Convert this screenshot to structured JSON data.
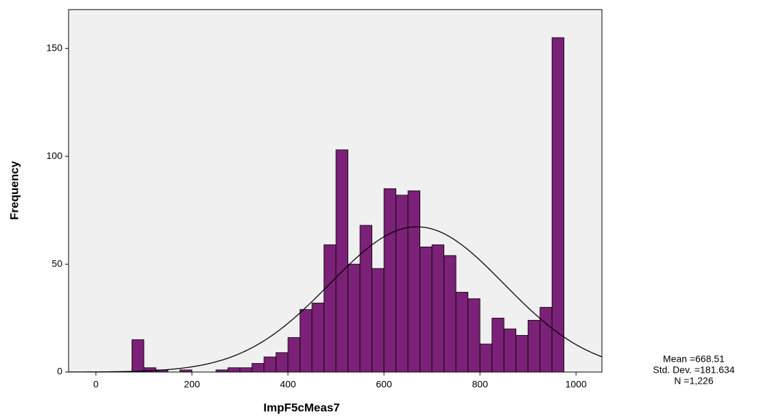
{
  "chart_data": {
    "type": "histogram",
    "x_label": "ImpF5cMeas7",
    "y_label": "Frequency",
    "bins": [
      75,
      100,
      125,
      150,
      175,
      200,
      225,
      250,
      275,
      300,
      325,
      350,
      375,
      400,
      425,
      450,
      475,
      500,
      525,
      550,
      575,
      600,
      625,
      650,
      675,
      700,
      725,
      750,
      775,
      800,
      825,
      850,
      875,
      900,
      925,
      950,
      975
    ],
    "values": [
      15,
      2,
      1,
      0,
      1,
      0,
      0,
      1,
      2,
      2,
      4,
      7,
      9,
      16,
      29,
      32,
      59,
      103,
      50,
      68,
      48,
      85,
      82,
      84,
      58,
      59,
      54,
      37,
      34,
      13,
      25,
      20,
      17,
      24,
      30,
      155
    ],
    "color": "#7b2177",
    "xlim": [
      -57,
      1054
    ],
    "ylim": [
      0,
      168
    ],
    "xticks": [
      0,
      200,
      400,
      600,
      800,
      1000
    ],
    "yticks": [
      0,
      50,
      100,
      150
    ],
    "normal_curve": true,
    "stats": [
      {
        "label": "Mean =668.51",
        "value": 668.51
      },
      {
        "label": "Std. Dev. =181.634",
        "value": 181.634
      },
      {
        "label": "N =1,226",
        "value": 1226
      }
    ]
  }
}
